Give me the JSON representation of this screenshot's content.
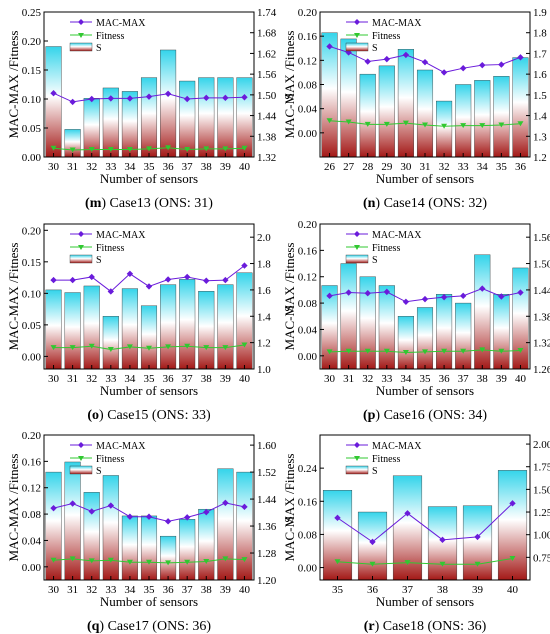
{
  "colors": {
    "bar_top": "#34d4ea",
    "bar_mid": "#ffffff",
    "bar_bottom": "#a31816",
    "mac": "#6a1bdb",
    "fitness": "#31c831",
    "axis": "#000000"
  },
  "chart_data": [
    {
      "type": "bar+line",
      "panel_letter": "m",
      "caption": "Case13 (ONS: 31)",
      "xlabel": "Number of sensors",
      "ylabel_left": "MAC-MAX /Fitness",
      "ylabel_right": "S",
      "legend": [
        "MAC-MAX",
        "Fitness",
        "S"
      ],
      "categories": [
        "30",
        "31",
        "32",
        "33",
        "34",
        "35",
        "36",
        "37",
        "38",
        "39",
        "40"
      ],
      "ylim_left": [
        0.0,
        0.25
      ],
      "yticks_left": [
        "0.00",
        "0.05",
        "0.10",
        "0.15",
        "0.20",
        "0.25"
      ],
      "ylim_right": [
        1.32,
        1.74
      ],
      "yticks_right": [
        "1.32",
        "1.38",
        "1.44",
        "1.50",
        "1.56",
        "1.62",
        "1.68",
        "1.74"
      ],
      "series": [
        {
          "name": "S",
          "axis": "right",
          "values": [
            1.64,
            1.4,
            1.49,
            1.52,
            1.51,
            1.55,
            1.63,
            1.54,
            1.55,
            1.55,
            1.55
          ]
        },
        {
          "name": "MAC-MAX",
          "axis": "left",
          "values": [
            0.11,
            0.095,
            0.1,
            0.101,
            0.101,
            0.104,
            0.109,
            0.1,
            0.102,
            0.102,
            0.103
          ]
        },
        {
          "name": "Fitness",
          "axis": "left",
          "values": [
            0.015,
            0.012,
            0.013,
            0.013,
            0.013,
            0.014,
            0.016,
            0.013,
            0.014,
            0.014,
            0.015
          ]
        }
      ]
    },
    {
      "type": "bar+line",
      "panel_letter": "n",
      "caption": "Case14 (ONS: 32)",
      "xlabel": "Number of sensors",
      "ylabel_left": "MAC-MAX /Fitness",
      "ylabel_right": "S",
      "legend": [
        "MAC-MAX",
        "Fitness",
        "S"
      ],
      "categories": [
        "26",
        "27",
        "28",
        "29",
        "30",
        "31",
        "32",
        "33",
        "34",
        "35",
        "36"
      ],
      "ylim_left": [
        -0.04,
        0.2
      ],
      "yticks_left": [
        "0.00",
        "0.04",
        "0.08",
        "0.12",
        "0.16",
        "0.20"
      ],
      "ylim_right": [
        1.2,
        1.9
      ],
      "yticks_right": [
        "1.2",
        "1.3",
        "1.4",
        "1.5",
        "1.6",
        "1.7",
        "1.8",
        "1.9"
      ],
      "series": [
        {
          "name": "S",
          "axis": "right",
          "values": [
            1.8,
            1.77,
            1.6,
            1.64,
            1.72,
            1.62,
            1.47,
            1.55,
            1.57,
            1.59,
            1.68
          ]
        },
        {
          "name": "MAC-MAX",
          "axis": "left",
          "values": [
            0.143,
            0.133,
            0.118,
            0.122,
            0.129,
            0.117,
            0.1,
            0.107,
            0.112,
            0.113,
            0.125
          ]
        },
        {
          "name": "Fitness",
          "axis": "left",
          "values": [
            0.02,
            0.018,
            0.014,
            0.014,
            0.016,
            0.013,
            0.011,
            0.012,
            0.012,
            0.013,
            0.015
          ]
        }
      ]
    },
    {
      "type": "bar+line",
      "panel_letter": "o",
      "caption": "Case15 (ONS: 33)",
      "xlabel": "Number of sensors",
      "ylabel_left": "MAC-MAX /Fitness",
      "ylabel_right": "S",
      "legend": [
        "MAC-MAX",
        "Fitness",
        "S"
      ],
      "categories": [
        "30",
        "31",
        "32",
        "33",
        "34",
        "35",
        "36",
        "37",
        "38",
        "39",
        "40"
      ],
      "ylim_left": [
        -0.02,
        0.21
      ],
      "yticks_left": [
        "0.00",
        "0.05",
        "0.10",
        "0.15",
        "0.20"
      ],
      "ylim_right": [
        1.0,
        2.1
      ],
      "yticks_right": [
        "1.0",
        "1.2",
        "1.4",
        "1.6",
        "1.8",
        "2.0"
      ],
      "series": [
        {
          "name": "S",
          "axis": "right",
          "values": [
            1.6,
            1.58,
            1.63,
            1.4,
            1.61,
            1.48,
            1.64,
            1.68,
            1.59,
            1.64,
            1.73
          ]
        },
        {
          "name": "MAC-MAX",
          "axis": "left",
          "values": [
            0.121,
            0.121,
            0.126,
            0.103,
            0.131,
            0.111,
            0.122,
            0.126,
            0.12,
            0.121,
            0.144
          ]
        },
        {
          "name": "Fitness",
          "axis": "left",
          "values": [
            0.014,
            0.014,
            0.016,
            0.011,
            0.015,
            0.013,
            0.015,
            0.016,
            0.014,
            0.014,
            0.018
          ]
        }
      ]
    },
    {
      "type": "bar+line",
      "panel_letter": "p",
      "caption": "Case16 (ONS: 34)",
      "xlabel": "Number of sensors",
      "ylabel_left": "MAC-MAX /Fitness",
      "ylabel_right": "S",
      "legend": [
        "MAC-MAX",
        "Fitness",
        "S"
      ],
      "categories": [
        "30",
        "31",
        "32",
        "33",
        "34",
        "35",
        "36",
        "37",
        "38",
        "39",
        "40"
      ],
      "ylim_left": [
        -0.02,
        0.2
      ],
      "yticks_left": [
        "0.00",
        "0.04",
        "0.08",
        "0.12",
        "0.16",
        "0.20"
      ],
      "ylim_right": [
        1.26,
        1.59
      ],
      "yticks_right": [
        "1.26",
        "1.32",
        "1.38",
        "1.44",
        "1.50",
        "1.56"
      ],
      "series": [
        {
          "name": "S",
          "axis": "right",
          "values": [
            1.45,
            1.5,
            1.47,
            1.45,
            1.38,
            1.4,
            1.43,
            1.41,
            1.52,
            1.43,
            1.49
          ]
        },
        {
          "name": "MAC-MAX",
          "axis": "left",
          "values": [
            0.091,
            0.096,
            0.095,
            0.097,
            0.082,
            0.086,
            0.089,
            0.091,
            0.102,
            0.09,
            0.096
          ]
        },
        {
          "name": "Fitness",
          "axis": "left",
          "values": [
            0.006,
            0.007,
            0.007,
            0.007,
            0.005,
            0.006,
            0.007,
            0.007,
            0.009,
            0.007,
            0.008
          ]
        }
      ]
    },
    {
      "type": "bar+line",
      "panel_letter": "q",
      "caption": "Case17 (ONS: 36)",
      "xlabel": "Number of sensors",
      "ylabel_left": "MAC-MAX /Fitness",
      "ylabel_right": "S",
      "legend": [
        "MAC-MAX",
        "Fitness",
        "S"
      ],
      "categories": [
        "30",
        "31",
        "32",
        "33",
        "34",
        "35",
        "36",
        "37",
        "38",
        "39",
        "40"
      ],
      "ylim_left": [
        -0.02,
        0.2
      ],
      "yticks_left": [
        "0.00",
        "0.04",
        "0.08",
        "0.12",
        "0.16",
        "0.20"
      ],
      "ylim_right": [
        1.2,
        1.63
      ],
      "yticks_right": [
        "1.20",
        "1.28",
        "1.36",
        "1.44",
        "1.52",
        "1.60"
      ],
      "series": [
        {
          "name": "S",
          "axis": "right",
          "values": [
            1.52,
            1.55,
            1.46,
            1.51,
            1.39,
            1.39,
            1.33,
            1.38,
            1.41,
            1.53,
            1.52
          ]
        },
        {
          "name": "MAC-MAX",
          "axis": "left",
          "values": [
            0.089,
            0.096,
            0.084,
            0.093,
            0.076,
            0.076,
            0.069,
            0.075,
            0.083,
            0.097,
            0.091
          ]
        },
        {
          "name": "Fitness",
          "axis": "left",
          "values": [
            0.01,
            0.012,
            0.009,
            0.01,
            0.007,
            0.007,
            0.006,
            0.007,
            0.008,
            0.012,
            0.011
          ]
        }
      ]
    },
    {
      "type": "bar+line",
      "panel_letter": "r",
      "caption": "Case18 (ONS: 36)",
      "xlabel": "Number of sensors",
      "ylabel_left": "MAC-MAX /Fitness",
      "ylabel_right": "S",
      "legend": [
        "MAC-MAX",
        "Fitness",
        "S"
      ],
      "categories": [
        "35",
        "36",
        "37",
        "38",
        "39",
        "40"
      ],
      "ylim_left": [
        -0.03,
        0.32
      ],
      "yticks_left": [
        "0.00",
        "0.08",
        "0.16",
        "0.24"
      ],
      "ylim_right": [
        0.5,
        2.1
      ],
      "yticks_right": [
        "0.75",
        "1.00",
        "1.25",
        "1.50",
        "1.75",
        "2.00"
      ],
      "series": [
        {
          "name": "S",
          "axis": "right",
          "values": [
            1.49,
            1.25,
            1.65,
            1.31,
            1.32,
            1.71
          ]
        },
        {
          "name": "MAC-MAX",
          "axis": "left",
          "values": [
            0.12,
            0.062,
            0.131,
            0.067,
            0.074,
            0.155
          ]
        },
        {
          "name": "Fitness",
          "axis": "left",
          "values": [
            0.014,
            0.008,
            0.012,
            0.008,
            0.008,
            0.022
          ]
        }
      ]
    }
  ]
}
